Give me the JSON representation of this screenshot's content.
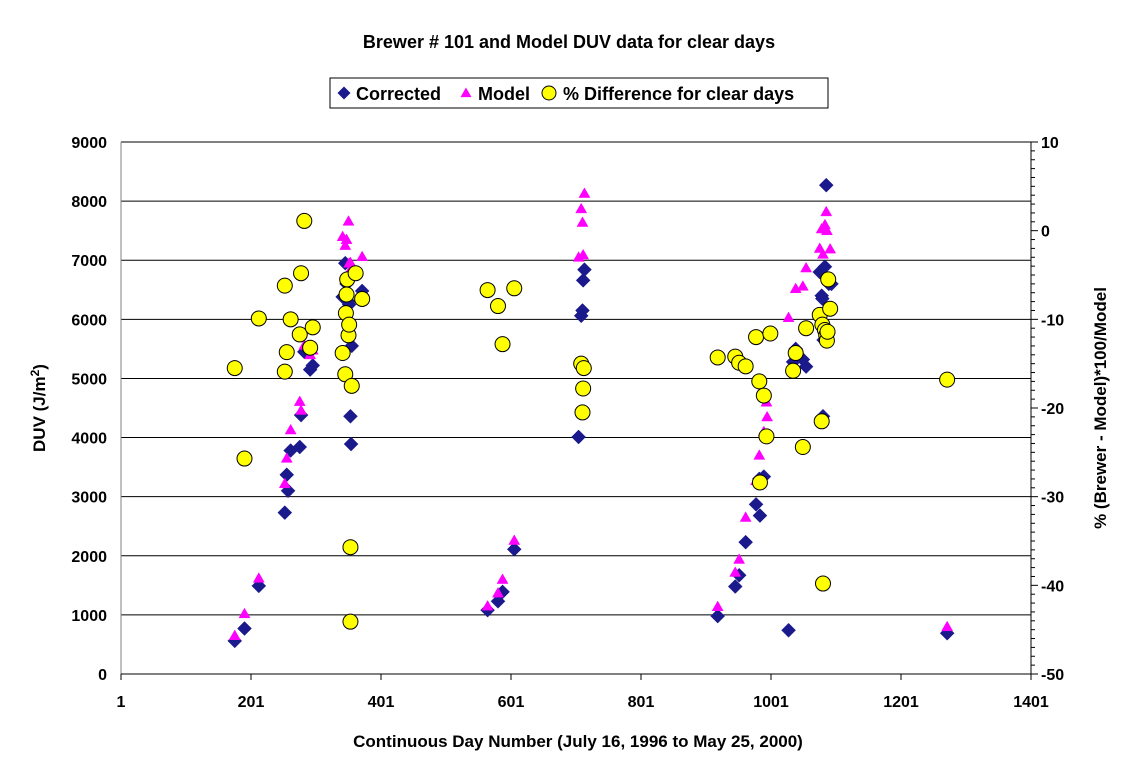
{
  "chart_data": {
    "type": "scatter",
    "title": "Brewer # 101 and Model DUV data for clear days",
    "xlabel": "Continuous Day Number (July 16, 1996 to May 25, 2000)",
    "ylabel_main": "DUV (J/m",
    "ylabel_sup": "2",
    "ylabel_close": ")",
    "y2label": "% (Brewer - Model)*100/Model",
    "xlim": [
      1,
      1401
    ],
    "ylim": [
      0,
      9000
    ],
    "y2lim": [
      -50,
      10
    ],
    "xticks": [
      "1",
      "201",
      "401",
      "601",
      "801",
      "1001",
      "1201",
      "1401"
    ],
    "yticks": [
      "0",
      "1000",
      "2000",
      "3000",
      "4000",
      "5000",
      "6000",
      "7000",
      "8000",
      "9000"
    ],
    "y2ticks": [
      "-50",
      "-40",
      "-30",
      "-20",
      "-10",
      "0",
      "10"
    ],
    "grid": "horizontal",
    "legend_position": "top-center",
    "colors": {
      "corrected": "#1a1a8c",
      "model": "#ff00ff",
      "difference_fill": "#ffff00",
      "difference_stroke": "#000000"
    },
    "series": [
      {
        "name": "Corrected",
        "marker": "diamond",
        "axis": "left",
        "points": [
          [
            176,
            560
          ],
          [
            191,
            770
          ],
          [
            213,
            1490
          ],
          [
            253,
            2730
          ],
          [
            256,
            3370
          ],
          [
            258,
            3100
          ],
          [
            262,
            3780
          ],
          [
            276,
            3840
          ],
          [
            278,
            4380
          ],
          [
            283,
            5450
          ],
          [
            292,
            5150
          ],
          [
            296,
            5220
          ],
          [
            342,
            6380
          ],
          [
            346,
            6950
          ],
          [
            348,
            6600
          ],
          [
            351,
            6300
          ],
          [
            352,
            6250
          ],
          [
            354,
            4360
          ],
          [
            355,
            3890
          ],
          [
            356,
            5550
          ],
          [
            372,
            6480
          ],
          [
            565,
            1080
          ],
          [
            581,
            1230
          ],
          [
            588,
            1390
          ],
          [
            606,
            2110
          ],
          [
            705,
            4010
          ],
          [
            709,
            6060
          ],
          [
            711,
            6150
          ],
          [
            712,
            6660
          ],
          [
            714,
            6840
          ],
          [
            919,
            980
          ],
          [
            946,
            1480
          ],
          [
            952,
            1670
          ],
          [
            962,
            2230
          ],
          [
            978,
            2870
          ],
          [
            983,
            3300
          ],
          [
            984,
            2680
          ],
          [
            990,
            3340
          ],
          [
            994,
            4020
          ],
          [
            1028,
            740
          ],
          [
            1035,
            5280
          ],
          [
            1039,
            5500
          ],
          [
            1050,
            5320
          ],
          [
            1055,
            5200
          ],
          [
            1076,
            6800
          ],
          [
            1079,
            6400
          ],
          [
            1080,
            6350
          ],
          [
            1081,
            4360
          ],
          [
            1082,
            5650
          ],
          [
            1084,
            6890
          ],
          [
            1087,
            6700
          ],
          [
            1090,
            6600
          ],
          [
            1094,
            6600
          ],
          [
            1086,
            8270
          ],
          [
            1272,
            690
          ]
        ]
      },
      {
        "name": "Model",
        "marker": "triangle",
        "axis": "left",
        "points": [
          [
            176,
            650
          ],
          [
            191,
            1020
          ],
          [
            213,
            1620
          ],
          [
            253,
            3220
          ],
          [
            256,
            3650
          ],
          [
            262,
            4130
          ],
          [
            276,
            4610
          ],
          [
            278,
            4460
          ],
          [
            283,
            5560
          ],
          [
            292,
            5400
          ],
          [
            296,
            5480
          ],
          [
            342,
            7400
          ],
          [
            346,
            7250
          ],
          [
            348,
            7350
          ],
          [
            351,
            7660
          ],
          [
            352,
            6950
          ],
          [
            354,
            6960
          ],
          [
            356,
            6880
          ],
          [
            360,
            6840
          ],
          [
            372,
            7060
          ],
          [
            565,
            1150
          ],
          [
            581,
            1370
          ],
          [
            588,
            1600
          ],
          [
            606,
            2260
          ],
          [
            705,
            7050
          ],
          [
            709,
            7870
          ],
          [
            711,
            7640
          ],
          [
            712,
            7090
          ],
          [
            714,
            8130
          ],
          [
            919,
            1140
          ],
          [
            946,
            1720
          ],
          [
            952,
            1940
          ],
          [
            962,
            2650
          ],
          [
            978,
            3270
          ],
          [
            983,
            3700
          ],
          [
            990,
            4100
          ],
          [
            994,
            4600
          ],
          [
            995,
            4350
          ],
          [
            1028,
            6030
          ],
          [
            1039,
            6520
          ],
          [
            1050,
            6560
          ],
          [
            1055,
            6870
          ],
          [
            1076,
            7200
          ],
          [
            1079,
            7530
          ],
          [
            1081,
            7100
          ],
          [
            1084,
            7600
          ],
          [
            1086,
            7820
          ],
          [
            1087,
            7500
          ],
          [
            1092,
            7190
          ],
          [
            1272,
            800
          ]
        ]
      },
      {
        "name": "% Difference for clear days",
        "marker": "circle",
        "axis": "right",
        "points": [
          [
            176,
            -15.5
          ],
          [
            191,
            -25.7
          ],
          [
            213,
            -9.9
          ],
          [
            253,
            -6.2
          ],
          [
            253,
            -15.9
          ],
          [
            256,
            -13.7
          ],
          [
            262,
            -10.0
          ],
          [
            276,
            -11.7
          ],
          [
            278,
            -4.8
          ],
          [
            283,
            1.1
          ],
          [
            292,
            -13.2
          ],
          [
            296,
            -10.9
          ],
          [
            342,
            -13.8
          ],
          [
            346,
            -16.2
          ],
          [
            347,
            -9.3
          ],
          [
            348,
            -7.2
          ],
          [
            349,
            -5.5
          ],
          [
            351,
            -11.8
          ],
          [
            352,
            -10.6
          ],
          [
            354,
            -35.7
          ],
          [
            354,
            -44.1
          ],
          [
            356,
            -17.5
          ],
          [
            362,
            -4.8
          ],
          [
            372,
            -7.7
          ],
          [
            565,
            -6.7
          ],
          [
            581,
            -8.5
          ],
          [
            588,
            -12.8
          ],
          [
            606,
            -6.5
          ],
          [
            709,
            -15.0
          ],
          [
            711,
            -20.5
          ],
          [
            712,
            -17.8
          ],
          [
            713,
            -15.5
          ],
          [
            919,
            -14.3
          ],
          [
            946,
            -14.2
          ],
          [
            952,
            -14.9
          ],
          [
            962,
            -15.3
          ],
          [
            978,
            -12.0
          ],
          [
            983,
            -17.0
          ],
          [
            984,
            -28.4
          ],
          [
            990,
            -18.6
          ],
          [
            994,
            -23.2
          ],
          [
            1000,
            -11.6
          ],
          [
            1035,
            -15.8
          ],
          [
            1039,
            -13.8
          ],
          [
            1050,
            -24.4
          ],
          [
            1055,
            -11.0
          ],
          [
            1076,
            -9.5
          ],
          [
            1079,
            -21.5
          ],
          [
            1080,
            -10.6
          ],
          [
            1081,
            -39.8
          ],
          [
            1084,
            -11.2
          ],
          [
            1086,
            -11.8
          ],
          [
            1087,
            -12.4
          ],
          [
            1088,
            -11.4
          ],
          [
            1089,
            -5.5
          ],
          [
            1092,
            -8.8
          ],
          [
            1272,
            -16.8
          ]
        ]
      }
    ]
  }
}
